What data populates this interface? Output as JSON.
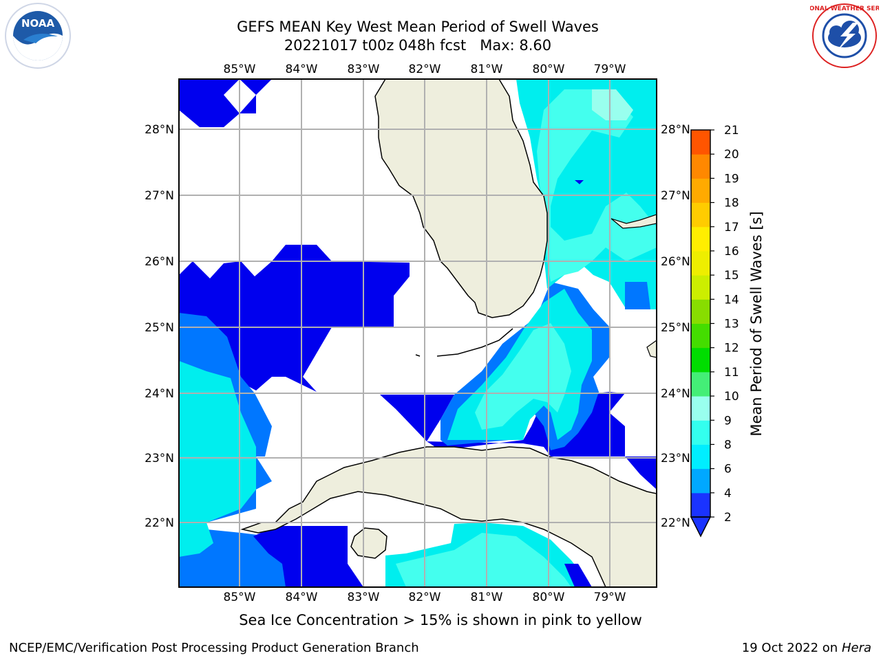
{
  "header": {
    "title_line1": "GEFS MEAN Key West Mean Period of Swell Waves",
    "title_line2": "20221017 t00z 048h fcst   Max: 8.60"
  },
  "logos": {
    "left": {
      "text": "NOAA",
      "icon": "noaa-logo-icon"
    },
    "right": {
      "text": "NATIONAL WEATHER SERVICE",
      "icon": "nws-logo-icon"
    }
  },
  "map": {
    "lon_labels": [
      "85°W",
      "84°W",
      "83°W",
      "82°W",
      "81°W",
      "80°W",
      "79°W"
    ],
    "lat_labels": [
      "28°N",
      "27°N",
      "26°N",
      "25°N",
      "24°N",
      "23°N",
      "22°N"
    ],
    "colors": {
      "land": "#eeeedd",
      "ocean_unset": "#ffffff",
      "grid": "#b0b0b0",
      "band_2_4": "#0000ee",
      "band_4_6": "#0077ff",
      "band_6_8": "#00eeee",
      "band_8_9": "#44ffee"
    }
  },
  "colorbar": {
    "label": "Mean Period of Swell Waves [s]",
    "ticks": [
      "2",
      "4",
      "6",
      "8",
      "9",
      "10",
      "11",
      "12",
      "13",
      "14",
      "15",
      "16",
      "17",
      "18",
      "19",
      "20",
      "21"
    ],
    "colors": [
      "#1a33ff",
      "#00a8ff",
      "#00eeff",
      "#33ffee",
      "#99ffee",
      "#44ee77",
      "#00dd00",
      "#44dd00",
      "#88dd00",
      "#ccee00",
      "#eeee00",
      "#ffee00",
      "#ffcc00",
      "#ffaa00",
      "#ff8800",
      "#ff5500",
      "#ff2200",
      "#ff0000"
    ]
  },
  "caption": "Sea Ice Concentration > 15% is shown in pink to yellow",
  "footer": {
    "left": "NCEP/EMC/Verification Post Processing Product Generation Branch",
    "right_date": "19 Oct 2022 on ",
    "right_host": "Hera"
  }
}
